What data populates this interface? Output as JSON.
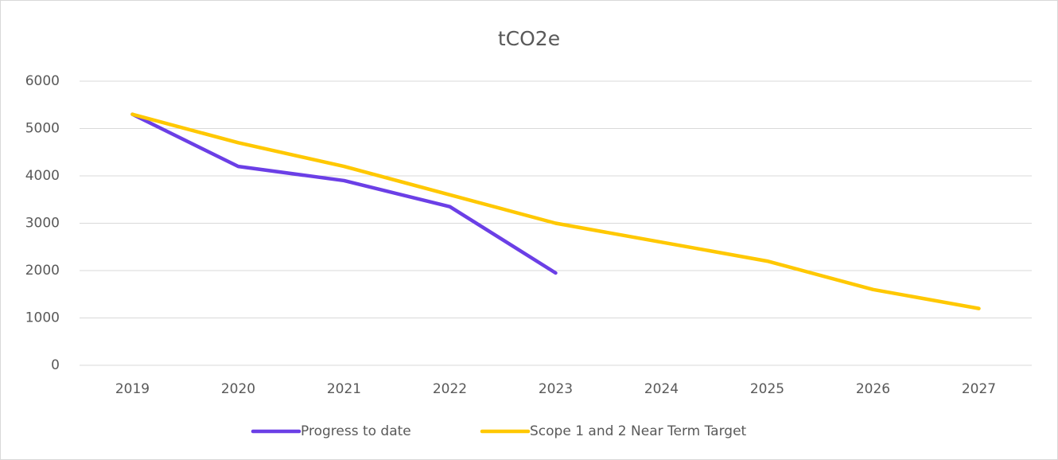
{
  "chart_data": {
    "type": "line",
    "title": "tCO2e",
    "categories": [
      "2019",
      "2020",
      "2021",
      "2022",
      "2023",
      "2024",
      "2025",
      "2026",
      "2027"
    ],
    "series": [
      {
        "name": "Progress to date",
        "color": "#6b3fe6",
        "values": [
          5300,
          4200,
          3900,
          3350,
          1950,
          null,
          null,
          null,
          null
        ]
      },
      {
        "name": "Scope 1 and 2 Near Term Target",
        "color": "#ffc800",
        "values": [
          5300,
          4700,
          4200,
          3600,
          3000,
          2600,
          2200,
          1600,
          1200
        ]
      }
    ],
    "ylim": [
      0,
      6000
    ],
    "yticks": [
      0,
      1000,
      2000,
      3000,
      4000,
      5000,
      6000
    ],
    "grid": true,
    "legend": "bottom"
  }
}
